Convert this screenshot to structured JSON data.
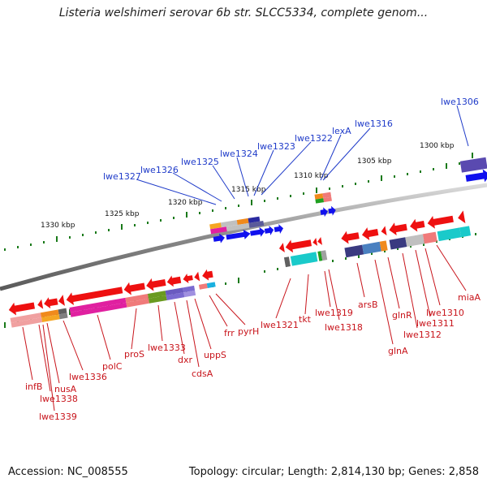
{
  "title": "Listeria welshimeri serovar 6b str. SLCC5334, complete genom...",
  "footer": {
    "accession": "Accession: NC_008555",
    "summary": "Topology: circular; Length: 2,814,130 bp; Genes: 2,858"
  },
  "kbp_labels": [
    "1330 kbp",
    "1325 kbp",
    "1320 kbp",
    "1315 kbp",
    "1310 kbp",
    "1305 kbp",
    "1300 kbp"
  ],
  "top_labels": [
    "lwe1327",
    "lwe1326",
    "lwe1325",
    "lwe1324",
    "lwe1323",
    "lwe1322",
    "lexA",
    "lwe1316",
    "lwe1306"
  ],
  "bottom_labels": [
    "infB",
    "lwe1338",
    "lwe1339",
    "nusA",
    "lwe1336",
    "polC",
    "proS",
    "lwe1333",
    "dxr",
    "cdsA",
    "uppS",
    "frr",
    "pyrH",
    "lwe1321",
    "tkt",
    "lwe1319",
    "lwe1318",
    "arsB",
    "glnA",
    "glnR",
    "lwe1312",
    "lwe1311",
    "lwe1310",
    "miaA"
  ],
  "colors": {
    "forward_gene": "#1010ee",
    "reverse_gene": "#ee1010",
    "backbone": "#8a8a8a",
    "tick": "#1a7a1a",
    "label_top": "#1f3bc9",
    "label_bottom": "#c8141b"
  }
}
